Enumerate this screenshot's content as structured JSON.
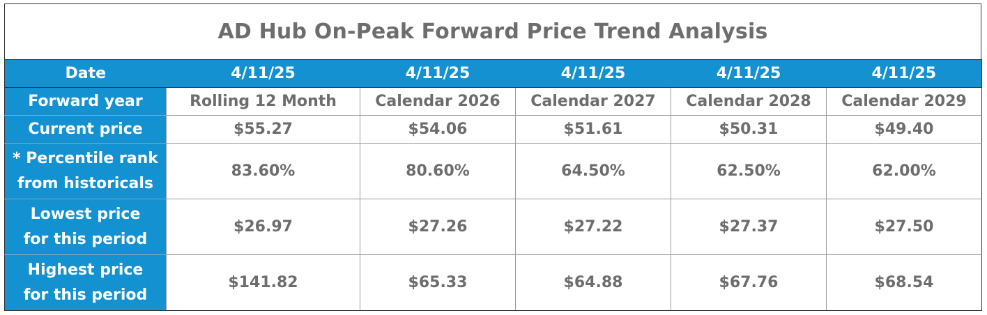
{
  "title": "AD Hub On-Peak Forward Price Trend Analysis",
  "chart_data": {
    "type": "table",
    "title": "AD Hub On-Peak Forward Price Trend Analysis",
    "columns": [
      "Date",
      "4/11/25",
      "4/11/25",
      "4/11/25",
      "4/11/25",
      "4/11/25"
    ],
    "rows": [
      {
        "label": [
          "Forward year"
        ],
        "values": [
          "Rolling 12 Month",
          "Calendar 2026",
          "Calendar 2027",
          "Calendar 2028",
          "Calendar 2029"
        ]
      },
      {
        "label": [
          "Current price"
        ],
        "values": [
          "$55.27",
          "$54.06",
          "$51.61",
          "$50.31",
          "$49.40"
        ]
      },
      {
        "label": [
          "* Percentile rank",
          "from historicals"
        ],
        "values": [
          "83.60%",
          "80.60%",
          "64.50%",
          "62.50%",
          "62.00%"
        ]
      },
      {
        "label": [
          "Lowest price",
          "for this period"
        ],
        "values": [
          "$26.97",
          "$27.26",
          "$27.22",
          "$27.37",
          "$27.50"
        ]
      },
      {
        "label": [
          "Highest price",
          "for this period"
        ],
        "values": [
          "$141.82",
          "$65.33",
          "$64.88",
          "$67.76",
          "$68.54"
        ]
      }
    ]
  }
}
